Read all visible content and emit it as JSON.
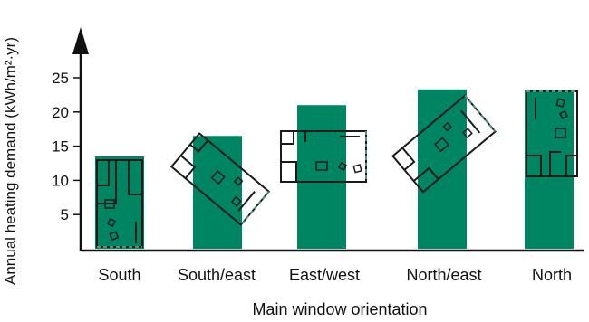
{
  "chart_data": {
    "type": "bar",
    "categories": [
      "South",
      "South/east",
      "East/west",
      "North/east",
      "North"
    ],
    "values": [
      13.5,
      16.5,
      21,
      23.3,
      23.2
    ],
    "ylabel": "Annual heating demand (kWh/m²·yr)",
    "xlabel": "Main window orientation",
    "ytick_labels": [
      "5",
      "10",
      "15",
      "20",
      "25"
    ],
    "ylim": [
      0,
      30
    ],
    "grid": false,
    "legend": "none",
    "colors": {
      "bar": "#008562",
      "plan_line": "#1a1a1a",
      "glazing": "#4a9a7a"
    },
    "icons": [
      "floor-plan-south-icon",
      "floor-plan-south-east-icon",
      "floor-plan-east-west-icon",
      "floor-plan-north-east-icon",
      "floor-plan-north-icon"
    ]
  }
}
